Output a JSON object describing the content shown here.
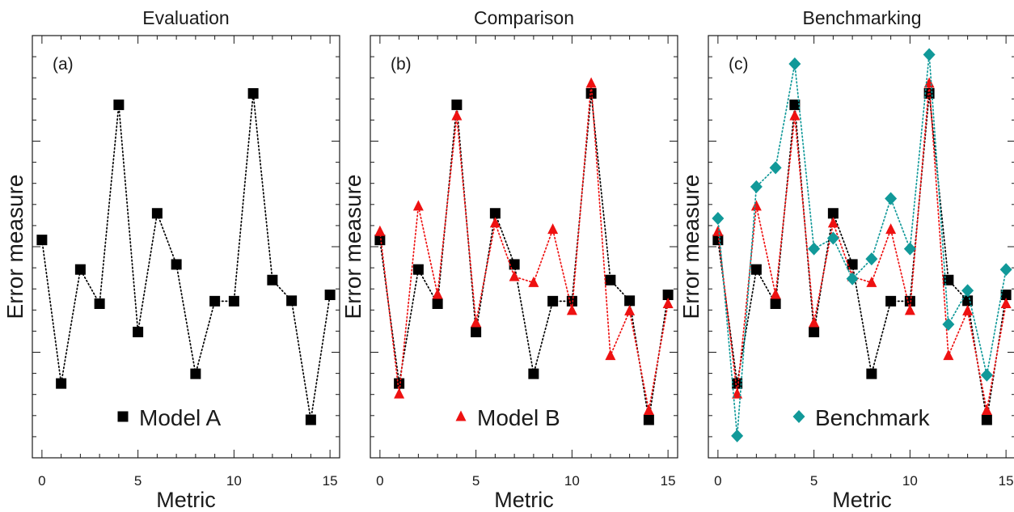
{
  "chart_data": [
    {
      "type": "line",
      "title": "Evaluation",
      "panel_label": "(a)",
      "xlabel": "Metric",
      "ylabel": "Error measure",
      "xlim": [
        -0.5,
        15.5
      ],
      "ylim": [
        0,
        1
      ],
      "x_ticks": [
        0,
        5,
        10,
        15
      ],
      "x": [
        0,
        1,
        2,
        3,
        4,
        5,
        6,
        7,
        8,
        9,
        10,
        11,
        12,
        13,
        14,
        15
      ],
      "legend_position": "bottom-center",
      "series": [
        {
          "name": "Model A",
          "color": "#000000",
          "marker": "square",
          "values": [
            0.516,
            0.176,
            0.446,
            0.365,
            0.836,
            0.298,
            0.579,
            0.458,
            0.199,
            0.371,
            0.371,
            0.863,
            0.421,
            0.372,
            0.09,
            0.386
          ]
        }
      ]
    },
    {
      "type": "line",
      "title": "Comparison",
      "panel_label": "(b)",
      "xlabel": "Metric",
      "ylabel": "Error measure",
      "xlim": [
        -0.5,
        15.5
      ],
      "ylim": [
        0,
        1
      ],
      "x_ticks": [
        0,
        5,
        10,
        15
      ],
      "x": [
        0,
        1,
        2,
        3,
        4,
        5,
        6,
        7,
        8,
        9,
        10,
        11,
        12,
        13,
        14,
        15
      ],
      "legend_position": "bottom-center",
      "series": [
        {
          "name": "",
          "color": "#000000",
          "marker": "square",
          "values": [
            0.516,
            0.176,
            0.446,
            0.365,
            0.836,
            0.298,
            0.579,
            0.458,
            0.199,
            0.371,
            0.371,
            0.863,
            0.421,
            0.372,
            0.09,
            0.386
          ]
        },
        {
          "name": "Model B",
          "color": "#ee1111",
          "marker": "triangle",
          "values": [
            0.536,
            0.151,
            0.596,
            0.387,
            0.81,
            0.32,
            0.556,
            0.429,
            0.415,
            0.541,
            0.349,
            0.887,
            0.242,
            0.348,
            0.112,
            0.365
          ]
        }
      ]
    },
    {
      "type": "line",
      "title": "Benchmarking",
      "panel_label": "(c)",
      "xlabel": "Metric",
      "ylabel": "Error measure",
      "xlim": [
        -0.5,
        15.5
      ],
      "ylim": [
        0,
        1
      ],
      "x_ticks": [
        0,
        5,
        10,
        15
      ],
      "x": [
        0,
        1,
        2,
        3,
        4,
        5,
        6,
        7,
        8,
        9,
        10,
        11,
        12,
        13,
        14,
        15
      ],
      "legend_position": "bottom-center",
      "series": [
        {
          "name": "",
          "color": "#000000",
          "marker": "square",
          "values": [
            0.516,
            0.176,
            0.446,
            0.365,
            0.836,
            0.298,
            0.579,
            0.458,
            0.199,
            0.371,
            0.371,
            0.863,
            0.421,
            0.372,
            0.09,
            0.386
          ]
        },
        {
          "name": "",
          "color": "#ee1111",
          "marker": "triangle",
          "values": [
            0.536,
            0.151,
            0.596,
            0.387,
            0.81,
            0.32,
            0.556,
            0.429,
            0.415,
            0.541,
            0.349,
            0.887,
            0.242,
            0.348,
            0.112,
            0.365
          ]
        },
        {
          "name": "Benchmark",
          "color": "#119999",
          "marker": "diamond",
          "values": [
            0.567,
            0.052,
            0.642,
            0.687,
            0.933,
            0.495,
            0.52,
            0.424,
            0.471,
            0.614,
            0.495,
            0.955,
            0.316,
            0.396,
            0.196,
            0.446
          ]
        }
      ]
    }
  ]
}
